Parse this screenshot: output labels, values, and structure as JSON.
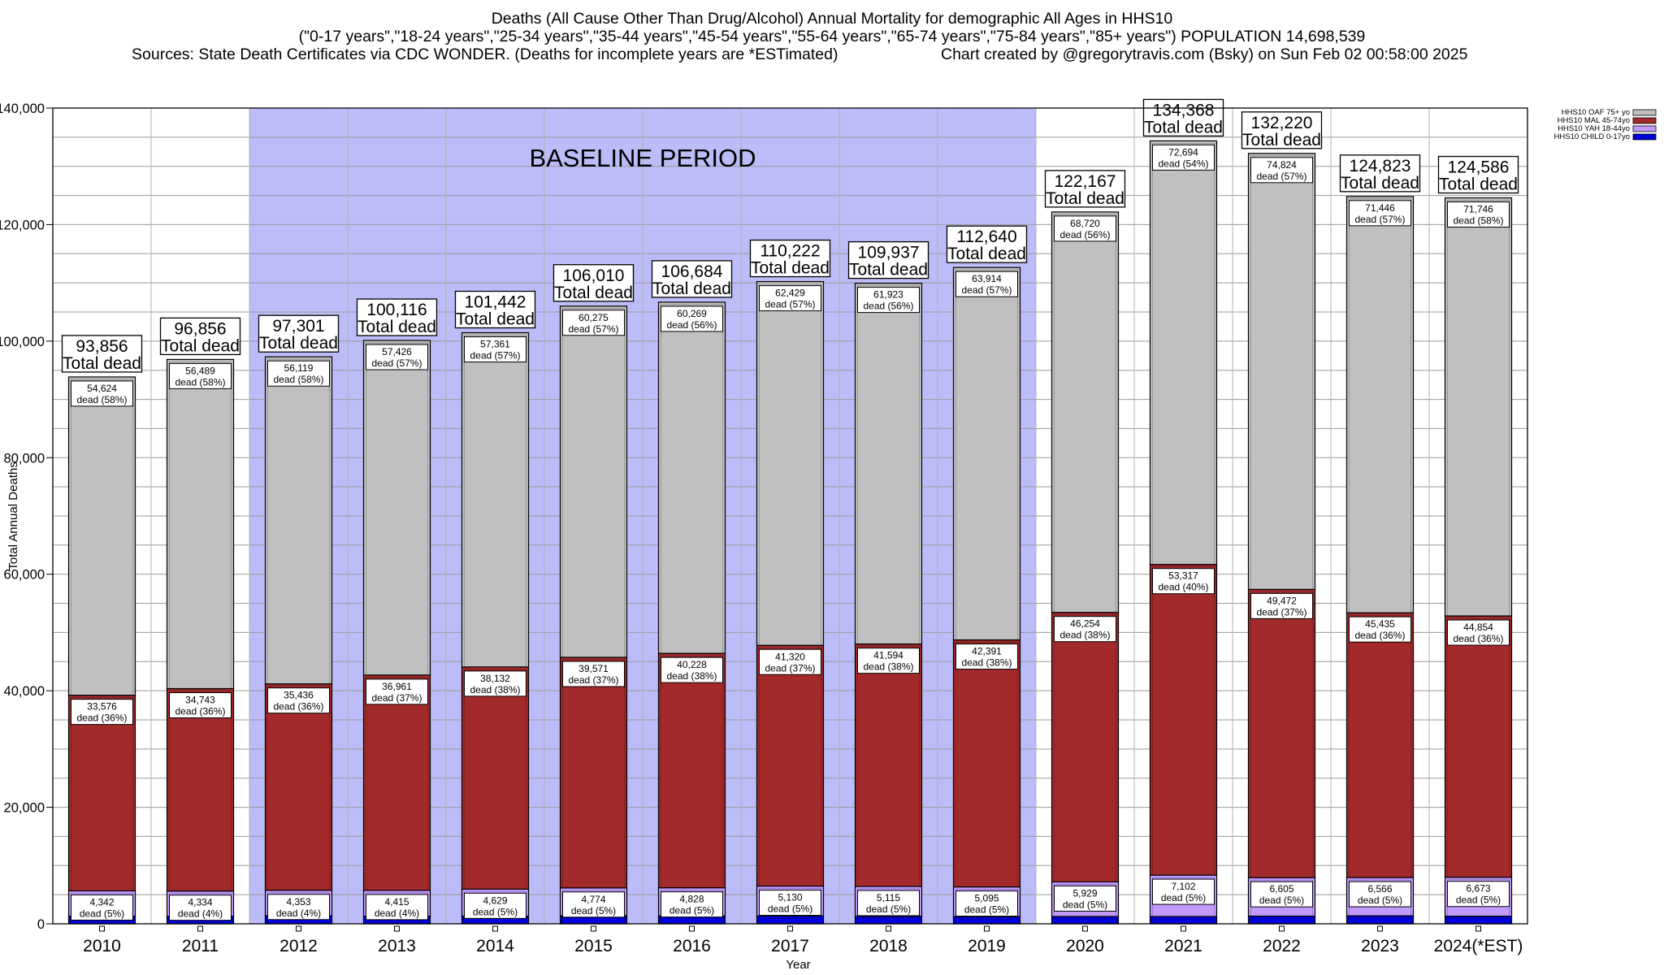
{
  "title": "Deaths (All Cause Other Than Drug/Alcohol) Annual Mortality for demographic All Ages in HHS10",
  "subtitle": "(\"0-17 years\",\"18-24 years\",\"25-34 years\",\"35-44 years\",\"45-54 years\",\"55-64 years\",\"65-74 years\",\"75-84 years\",\"85+ years\") POPULATION 14,698,539",
  "sources": "Sources: State Death Certificates via CDC WONDER. (Deaths for incomplete years are *ESTimated)",
  "credit": "Chart created by @gregorytravis.com (Bsky) on Sun Feb 02 00:58:00 2025",
  "chart_data": {
    "type": "bar",
    "stacked": true,
    "xlabel": "Year",
    "ylabel": "Total Annual Deaths",
    "ylim": [
      0,
      140000
    ],
    "yticks": [
      "0",
      "20,000",
      "40,000",
      "60,000",
      "80,000",
      "100,000",
      "120,000",
      "140,000"
    ],
    "grid": true,
    "legend_position": "top-right",
    "categories": [
      "2010",
      "2011",
      "2012",
      "2013",
      "2014",
      "2015",
      "2016",
      "2017",
      "2018",
      "2019",
      "2020",
      "2021",
      "2022",
      "2023",
      "2024(*EST)"
    ],
    "baseline": {
      "label": "BASELINE PERIOD",
      "from": "2012",
      "to": "2019",
      "color": "#bcbcf8"
    },
    "totals": [
      93856,
      96856,
      97301,
      100116,
      101442,
      106010,
      106684,
      110222,
      109937,
      112640,
      122167,
      134368,
      132220,
      124823,
      124586
    ],
    "totals_text": [
      "93,856",
      "96,856",
      "97,301",
      "100,116",
      "101,442",
      "106,010",
      "106,684",
      "110,222",
      "109,937",
      "112,640",
      "122,167",
      "134,368",
      "132,220",
      "124,823",
      "124,586"
    ],
    "total_suffix": "Total dead",
    "series": [
      {
        "name": "HHS10 CHILD 0-17yo",
        "color": "#0000dd",
        "values": [
          1314,
          1290,
          1393,
          1314,
          1320,
          1390,
          1359,
          1343,
          1305,
          1240,
          1264,
          1255,
          1319,
          1376,
          1313
        ]
      },
      {
        "name": "HHS10 YAH 18-44yo",
        "color": "#c29bff",
        "values": [
          4342,
          4334,
          4353,
          4415,
          4629,
          4774,
          4828,
          5130,
          5115,
          5095,
          5929,
          7102,
          6605,
          6566,
          6673
        ],
        "labels": [
          "4,342\ndead (5%)",
          "4,334\ndead (4%)",
          "4,353\ndead (4%)",
          "4,415\ndead (4%)",
          "4,629\ndead (5%)",
          "4,774\ndead (5%)",
          "4,828\ndead (5%)",
          "5,130\ndead (5%)",
          "5,115\ndead (5%)",
          "5,095\ndead (5%)",
          "5,929\ndead (5%)",
          "7,102\ndead (5%)",
          "6,605\ndead (5%)",
          "6,566\ndead (5%)",
          "6,673\ndead (5%)"
        ]
      },
      {
        "name": "HHS10 MAL 45-74yo",
        "color": "#a32a2a",
        "values": [
          33576,
          34743,
          35436,
          36961,
          38132,
          39571,
          40228,
          41320,
          41594,
          42391,
          46254,
          53317,
          49472,
          45435,
          44854
        ],
        "labels": [
          "33,576\ndead (36%)",
          "34,743\ndead (36%)",
          "35,436\ndead (36%)",
          "36,961\ndead (37%)",
          "38,132\ndead (38%)",
          "39,571\ndead (37%)",
          "40,228\ndead (38%)",
          "41,320\ndead (37%)",
          "41,594\ndead (38%)",
          "42,391\ndead (38%)",
          "46,254\ndead (38%)",
          "53,317\ndead (40%)",
          "49,472\ndead (37%)",
          "45,435\ndead (36%)",
          "44,854\ndead (36%)"
        ]
      },
      {
        "name": "HHS10 OAF 75+ yo",
        "color": "#c0c0c0",
        "values": [
          54624,
          56489,
          56119,
          57426,
          57361,
          60275,
          60269,
          62429,
          61923,
          63914,
          68720,
          72694,
          74824,
          71446,
          71746
        ],
        "labels": [
          "54,624\ndead (58%)",
          "56,489\ndead (58%)",
          "56,119\ndead (58%)",
          "57,426\ndead (57%)",
          "57,361\ndead (57%)",
          "60,275\ndead (57%)",
          "60,269\ndead (56%)",
          "62,429\ndead (57%)",
          "61,923\ndead (56%)",
          "63,914\ndead (57%)",
          "68,720\ndead (56%)",
          "72,694\ndead (54%)",
          "74,824\ndead (57%)",
          "71,446\ndead (57%)",
          "71,746\ndead (58%)"
        ]
      }
    ]
  }
}
